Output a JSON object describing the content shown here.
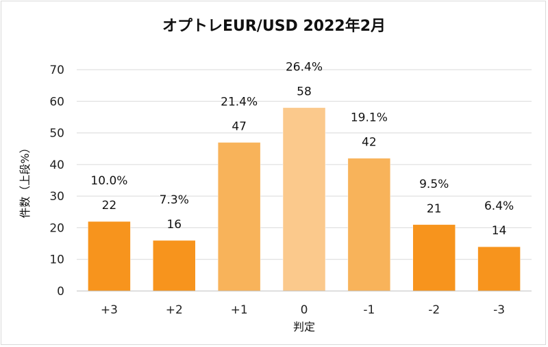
{
  "chart_data": {
    "type": "bar",
    "title": "オプトレEUR/USD 2022年2月",
    "xlabel": "判定",
    "ylabel": "件数（上段%）",
    "categories": [
      "+3",
      "+2",
      "+1",
      "0",
      "-1",
      "-2",
      "-3"
    ],
    "values": [
      22,
      16,
      47,
      58,
      42,
      21,
      14
    ],
    "percent_labels": [
      "10.0%",
      "7.3%",
      "21.4%",
      "26.4%",
      "19.1%",
      "9.5%",
      "6.4%"
    ],
    "bar_colors": [
      "#f7941d",
      "#f7941d",
      "#f8b35a",
      "#fbc98c",
      "#f8b35a",
      "#f7941d",
      "#f7941d"
    ],
    "ylim": [
      0,
      70
    ],
    "yticks": [
      0,
      10,
      20,
      30,
      40,
      50,
      60,
      70
    ],
    "grid": true,
    "legend": "none"
  }
}
